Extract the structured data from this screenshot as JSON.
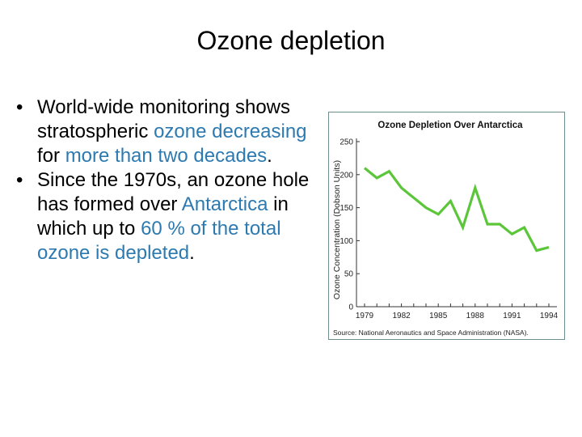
{
  "slide": {
    "title": "Ozone depletion",
    "bullets": [
      {
        "runs": [
          {
            "text": "World-wide monitoring shows stratospheric ",
            "hl": false
          },
          {
            "text": "ozone decreasing",
            "hl": true
          },
          {
            "text": " for ",
            "hl": false
          },
          {
            "text": "more than two decades",
            "hl": true
          },
          {
            "text": ".",
            "hl": false
          }
        ]
      },
      {
        "runs": [
          {
            "text": "Since the 1970s, an ozone hole has formed over ",
            "hl": false
          },
          {
            "text": "Antarctica",
            "hl": true
          },
          {
            "text": " in which up to ",
            "hl": false
          },
          {
            "text": "60 % of the total ozone is depleted",
            "hl": true
          },
          {
            "text": ".",
            "hl": false
          }
        ]
      }
    ],
    "bullet_glyph": "•",
    "highlight_color": "#2d7ab0"
  },
  "chart_data": {
    "type": "line",
    "title": "Ozone Depletion Over Antarctica",
    "ylabel": "Ozone Concentration (Dobson Units)",
    "xlabel": "",
    "source": "Source: National Aeronautics and Space Administration (NASA).",
    "ylim": [
      0,
      250
    ],
    "yticks": [
      0,
      50,
      100,
      150,
      200,
      250
    ],
    "xlim": [
      1979,
      1994
    ],
    "xtick_labels": [
      "1979",
      "1982",
      "1985",
      "1988",
      "1991",
      "1994"
    ],
    "x": [
      1979,
      1980,
      1981,
      1982,
      1983,
      1984,
      1985,
      1986,
      1987,
      1988,
      1989,
      1990,
      1991,
      1992,
      1993,
      1994
    ],
    "y": [
      210,
      195,
      205,
      180,
      165,
      150,
      140,
      160,
      120,
      180,
      125,
      125,
      110,
      120,
      85,
      90
    ],
    "line_color": "#5cc63a",
    "grid": false
  }
}
